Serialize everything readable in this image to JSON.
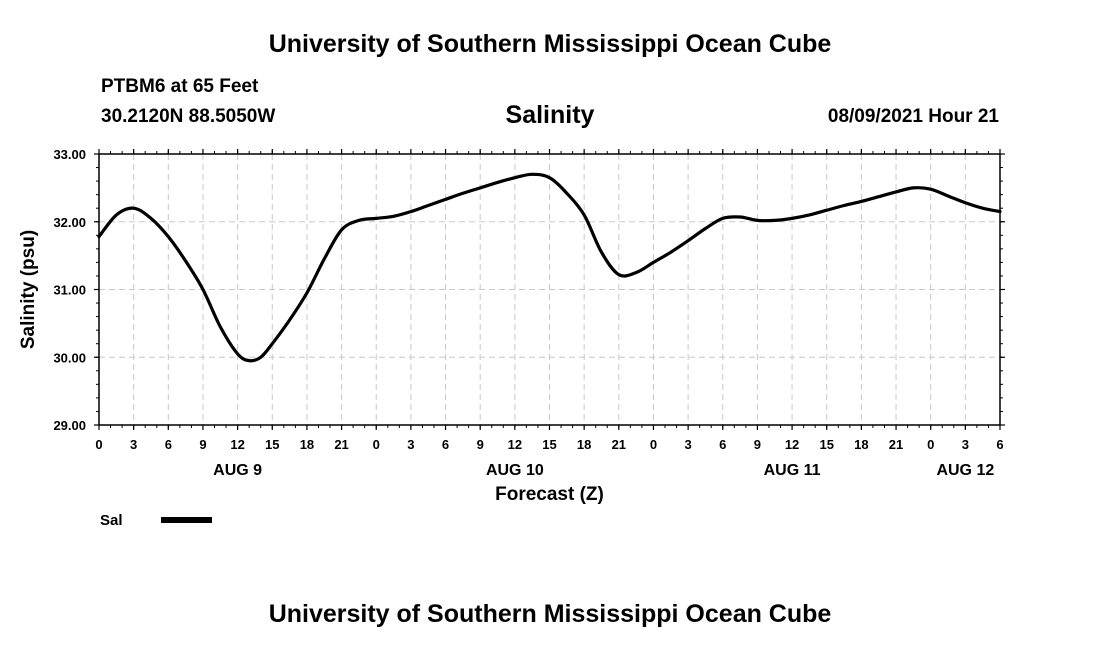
{
  "header": {
    "title": "University of Southern Mississippi Ocean Cube",
    "station": "PTBM6 at 65 Feet",
    "coordinates": "30.2120N  88.5050W",
    "datetime": "08/09/2021 Hour 21"
  },
  "footer": {
    "title": "University of Southern Mississippi Ocean Cube"
  },
  "chart_data": {
    "type": "line",
    "title": "Salinity",
    "xlabel": "Forecast (Z)",
    "ylabel": "Salinity (psu)",
    "ylim": [
      29.0,
      33.0
    ],
    "yticks": [
      "29.00",
      "30.00",
      "31.00",
      "32.00",
      "33.00"
    ],
    "xlim": [
      0,
      78
    ],
    "xticks": [
      "0",
      "3",
      "6",
      "9",
      "12",
      "15",
      "18",
      "21",
      "0",
      "3",
      "6",
      "9",
      "12",
      "15",
      "18",
      "21",
      "0",
      "3",
      "6",
      "9",
      "12",
      "15",
      "18",
      "21",
      "0",
      "3",
      "6"
    ],
    "day_labels": [
      {
        "label": "AUG 9",
        "hour": 12
      },
      {
        "label": "AUG 10",
        "hour": 36
      },
      {
        "label": "AUG 11",
        "hour": 60
      },
      {
        "label": "AUG 12",
        "hour": 75
      }
    ],
    "grid": true,
    "legend": "bottom-left",
    "series": [
      {
        "name": "Sal",
        "x": [
          0,
          1.5,
          3,
          4.5,
          6,
          7.5,
          9,
          10.5,
          12,
          13,
          14,
          15,
          16.5,
          18,
          19.5,
          21,
          22.5,
          24,
          25.5,
          27,
          28.5,
          30,
          31.5,
          33,
          34.5,
          36,
          37.5,
          39,
          40.5,
          42,
          43.5,
          45,
          46.5,
          48,
          49.5,
          51,
          52.5,
          54,
          55.5,
          57,
          58.5,
          60,
          61.5,
          63,
          64.5,
          66,
          67.5,
          69,
          70.5,
          72,
          73.5,
          75,
          76.5,
          78
        ],
        "values": [
          31.78,
          32.1,
          32.2,
          32.05,
          31.78,
          31.42,
          31.0,
          30.45,
          30.05,
          29.95,
          30.0,
          30.2,
          30.55,
          30.95,
          31.45,
          31.88,
          32.02,
          32.05,
          32.08,
          32.15,
          32.24,
          32.33,
          32.42,
          32.5,
          32.58,
          32.65,
          32.7,
          32.65,
          32.42,
          32.1,
          31.55,
          31.22,
          31.25,
          31.4,
          31.55,
          31.72,
          31.9,
          32.05,
          32.07,
          32.02,
          32.02,
          32.05,
          32.1,
          32.17,
          32.24,
          32.3,
          32.37,
          32.44,
          32.5,
          32.48,
          32.38,
          32.28,
          32.2,
          32.15
        ]
      }
    ]
  }
}
